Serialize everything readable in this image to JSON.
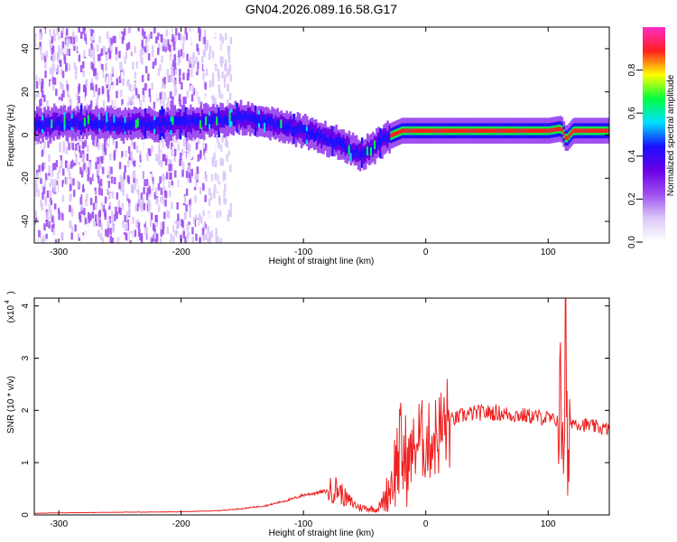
{
  "figure_title": "GN04.2026.089.16.58.G17",
  "colors": {
    "snr_line": "#ee2222",
    "spectrogram_colormap": [
      "#ffffff",
      "#dcc8f8",
      "#a050f0",
      "#6a00e6",
      "#1a10ff",
      "#00e0ff",
      "#00ff40",
      "#ffff00",
      "#ff2020",
      "#ff2cc8"
    ]
  },
  "chart_data": [
    {
      "type": "heatmap",
      "xlabel": "Height of straight line (km)",
      "ylabel": "Frequency (Hz)",
      "xlim": [
        -320,
        150
      ],
      "ylim": [
        -50,
        50
      ],
      "xticks": [
        -300,
        -200,
        -100,
        0,
        100
      ],
      "yticks": [
        -40,
        -20,
        0,
        20,
        40
      ],
      "colorbar": {
        "label": "Normalized spectral amplitude",
        "range": [
          0,
          1
        ],
        "ticks": [
          "0.0",
          "0.2",
          "0.4",
          "0.6",
          "0.8"
        ]
      },
      "ridge": {
        "description": "dominant frequency versus height",
        "x": [
          -310,
          -280,
          -250,
          -220,
          -190,
          -170,
          -150,
          -130,
          -110,
          -90,
          -70,
          -55,
          -45,
          -35,
          -28,
          -20,
          0,
          50,
          90,
          100,
          110,
          114,
          120,
          150
        ],
        "frequency": [
          5,
          6,
          5,
          5,
          6,
          7,
          8,
          6,
          3,
          0,
          -4,
          -9,
          -7,
          -2,
          0,
          2,
          2,
          2,
          2,
          2,
          3,
          -2,
          2,
          2
        ]
      }
    },
    {
      "type": "line",
      "xlabel": "Height of straight line (km)",
      "ylabel": "SNR (10 * v/v)",
      "y_scale_label": "(x10",
      "y_scale_exponent": "4",
      "xlim": [
        -320,
        150
      ],
      "ylim": [
        0,
        4.15
      ],
      "xticks": [
        -300,
        -200,
        -100,
        0,
        100
      ],
      "yticks": [
        0,
        1,
        2,
        3,
        4
      ],
      "series": [
        {
          "x": [
            -320,
            -300,
            -250,
            -200,
            -170,
            -150,
            -130,
            -110,
            -100,
            -90,
            -80,
            -72,
            -65,
            -55,
            -40,
            -35,
            -30,
            -25,
            -22,
            -18,
            -15,
            -10,
            -5,
            0,
            5,
            10,
            15,
            20,
            30,
            40,
            50,
            60,
            70,
            80,
            90,
            100,
            105,
            110,
            113,
            115,
            116,
            118,
            125,
            135,
            150
          ],
          "y": [
            0.03,
            0.04,
            0.05,
            0.06,
            0.08,
            0.12,
            0.18,
            0.3,
            0.38,
            0.42,
            0.46,
            0.5,
            0.3,
            0.15,
            0.1,
            0.25,
            0.5,
            0.9,
            1.2,
            1.1,
            1.0,
            1.25,
            1.5,
            1.35,
            1.45,
            1.55,
            1.7,
            1.8,
            1.9,
            1.95,
            1.96,
            1.95,
            1.92,
            1.9,
            1.88,
            1.85,
            1.8,
            1.85,
            2.1,
            3.6,
            0.3,
            1.8,
            1.75,
            1.7,
            1.63
          ]
        }
      ]
    }
  ]
}
